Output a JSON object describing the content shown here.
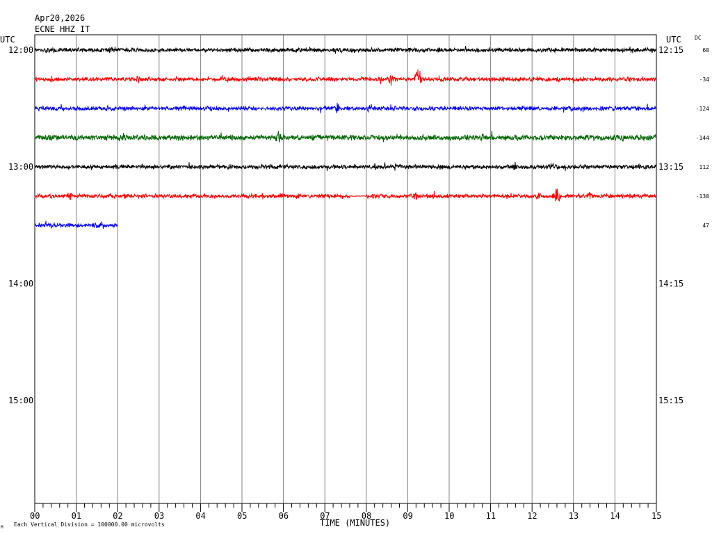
{
  "header": {
    "date": "Apr20,2026",
    "station": "ECNE HHZ IT",
    "utc_left": "UTC",
    "utc_right": "UTC",
    "dc_label": "DC"
  },
  "footer": {
    "xlabel": "TIME (MINUTES)",
    "note": "Each Vertical Division = 100000.00 microvolts",
    "corner_mark": "M"
  },
  "chart_data": {
    "type": "line",
    "title": "ECNE HHZ IT",
    "xlabel": "TIME (MINUTES)",
    "x_ticks": [
      "00",
      "01",
      "02",
      "03",
      "04",
      "05",
      "06",
      "07",
      "08",
      "09",
      "10",
      "11",
      "12",
      "13",
      "14",
      "15"
    ],
    "xlim": [
      0,
      15
    ],
    "left_time_labels": [
      "12:00",
      "",
      "",
      "",
      "13:00",
      "",
      "",
      "",
      "14:00",
      "",
      "",
      "",
      "15:00"
    ],
    "right_time_labels": [
      "12:15",
      "",
      "",
      "",
      "13:15",
      "",
      "",
      "",
      "14:15",
      "",
      "",
      "",
      "15:15"
    ],
    "rows_total": 16,
    "traces": [
      {
        "row": 0,
        "color": "#000000",
        "dc": "60",
        "end_minute": 15,
        "amplitude": 3,
        "bursts": [
          [
            1.8,
            10
          ],
          [
            0.3,
            6
          ],
          [
            1.3,
            5
          ],
          [
            6.8,
            6
          ],
          [
            9.8,
            5
          ],
          [
            14.9,
            6
          ]
        ]
      },
      {
        "row": 1,
        "color": "#ff0000",
        "dc": "-34",
        "end_minute": 15,
        "amplitude": 3,
        "bursts": [
          [
            2.5,
            9
          ],
          [
            8.6,
            14
          ],
          [
            9.25,
            20
          ],
          [
            5.2,
            6
          ],
          [
            12.9,
            5
          ]
        ]
      },
      {
        "row": 2,
        "color": "#0000ff",
        "dc": "-124",
        "end_minute": 15,
        "amplitude": 3,
        "bursts": [
          [
            7.3,
            10
          ],
          [
            8.1,
            8
          ],
          [
            3.6,
            6
          ],
          [
            11.3,
            5
          ]
        ]
      },
      {
        "row": 3,
        "color": "#006400",
        "dc": "-144",
        "end_minute": 15,
        "amplitude": 4,
        "bursts": [
          [
            5.9,
            12
          ],
          [
            10.8,
            10
          ],
          [
            6.7,
            7
          ],
          [
            14.2,
            7
          ],
          [
            12.5,
            6
          ]
        ]
      },
      {
        "row": 4,
        "color": "#000000",
        "dc": "112",
        "end_minute": 15,
        "amplitude": 3,
        "bursts": [
          [
            8.7,
            9
          ],
          [
            11.6,
            8
          ],
          [
            12.5,
            9
          ],
          [
            8.2,
            6
          ]
        ]
      },
      {
        "row": 5,
        "color": "#ff0000",
        "dc": "-130",
        "end_minute": 15,
        "amplitude": 3,
        "bursts": [
          [
            0.85,
            9
          ],
          [
            9.2,
            9
          ],
          [
            12.15,
            9
          ],
          [
            12.6,
            20
          ],
          [
            13.4,
            11
          ],
          [
            5.5,
            6
          ]
        ],
        "flat": [
          [
            7.6,
            8.0
          ]
        ]
      },
      {
        "row": 6,
        "color": "#0000ff",
        "dc": "47",
        "end_minute": 2,
        "amplitude": 3,
        "bursts": [
          [
            1.5,
            7
          ]
        ]
      }
    ]
  }
}
